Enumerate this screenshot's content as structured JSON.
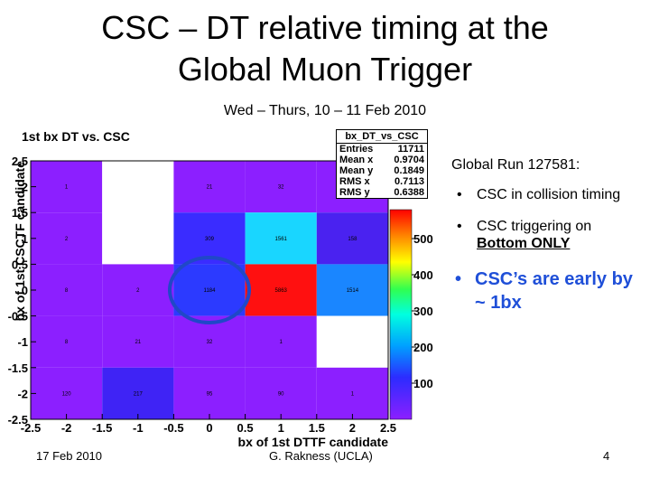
{
  "slide": {
    "title_line1": "CSC – DT relative timing at the",
    "title_line2": "Global Muon Trigger",
    "subtitle": "Wed – Thurs,  10 – 11 Feb 2010",
    "run": "Global Run 127581:",
    "bullet1": "CSC in collision timing",
    "bullet2_pre": "CSC triggering on",
    "bullet2_u": "Bottom ONLY",
    "bullet3": "CSC’s are early by ~ 1bx",
    "bullet_symbol": "•",
    "footer_date": "17 Feb 2010",
    "footer_author": "G. Rakness (UCLA)",
    "page_number": "4"
  },
  "stats_box": {
    "name": "bx_DT_vs_CSC",
    "rows": [
      {
        "label": "Entries",
        "value": "11711"
      },
      {
        "label": "Mean x",
        "value": "0.9704"
      },
      {
        "label": "Mean y",
        "value": "0.1849"
      },
      {
        "label": "RMS x",
        "value": "0.7113"
      },
      {
        "label": "RMS y",
        "value": "0.6388"
      }
    ]
  },
  "chart_data": {
    "type": "heatmap",
    "title": "1st bx DT vs. CSC",
    "xlabel": "bx of 1st DTTF candidate",
    "ylabel": "bx of 1st CSCTF candidate",
    "xlim": [
      -2.5,
      2.5
    ],
    "ylim": [
      -2.5,
      2.5
    ],
    "x_ticks": [
      "-2.5",
      "-2",
      "-1.5",
      "-1",
      "-0.5",
      "0",
      "0.5",
      "1",
      "1.5",
      "2",
      "2.5"
    ],
    "y_ticks": [
      "-2.5",
      "-2",
      "-1.5",
      "-1",
      "-0.5",
      "0",
      "0.5",
      "1",
      "1.5",
      "2",
      "2.5"
    ],
    "colorbar_ticks": [
      "100",
      "200",
      "300",
      "400",
      "500"
    ],
    "x_bins": [
      -2,
      -1,
      0,
      1,
      2
    ],
    "y_bins": [
      2,
      1,
      0,
      -1,
      -2
    ],
    "cells": [
      [
        "1",
        "",
        "21",
        "32",
        ""
      ],
      [
        "2",
        "",
        "309",
        "1561",
        "158"
      ],
      [
        "8",
        "2",
        "1184",
        "5863",
        "1514"
      ],
      [
        "8",
        "21",
        "32",
        "1",
        ""
      ],
      [
        "120",
        "217",
        "95",
        "90",
        "1"
      ]
    ],
    "cell_colors": [
      [
        "#8c1fff",
        "#ffffff",
        "#8c1fff",
        "#8c1fff",
        "#8c1fff"
      ],
      [
        "#8c1fff",
        "#ffffff",
        "#3a2cff",
        "#19d6ff",
        "#4a22f0"
      ],
      [
        "#8c1fff",
        "#8c1fff",
        "#2c3aff",
        "#ff1010",
        "#1a86ff"
      ],
      [
        "#8c1fff",
        "#8c1fff",
        "#8c1fff",
        "#8c1fff",
        "#ffffff"
      ],
      [
        "#8c1fff",
        "#3f23f5",
        "#8c1fff",
        "#8c1fff",
        "#8c1fff"
      ]
    ],
    "circle_color": "#2048c8"
  }
}
